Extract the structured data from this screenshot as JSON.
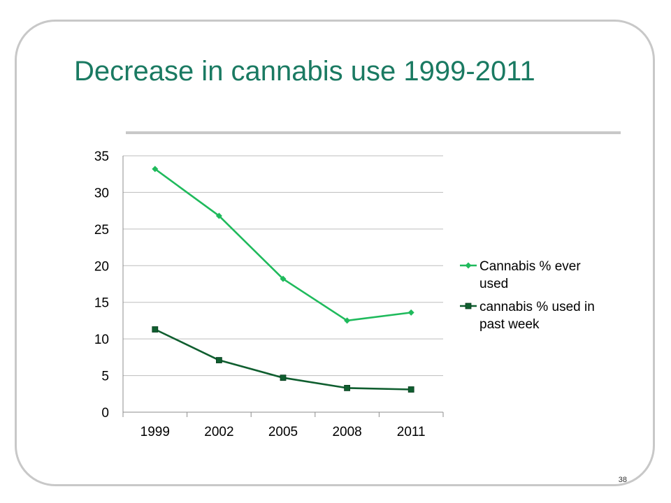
{
  "slide": {
    "title": "Decrease in cannabis use 1999-2011",
    "page_number": "38"
  },
  "chart_data": {
    "type": "line",
    "title": "",
    "xlabel": "",
    "ylabel": "",
    "categories": [
      "1999",
      "2002",
      "2005",
      "2008",
      "2011"
    ],
    "ylim": [
      0,
      35
    ],
    "yticks": [
      0,
      5,
      10,
      15,
      20,
      25,
      30,
      35
    ],
    "grid": true,
    "legend_position": "right",
    "series": [
      {
        "name": "Cannabis % ever used",
        "legend_lines": [
          "Cannabis % ever",
          "used"
        ],
        "marker": "diamond",
        "color": "#1fba5c",
        "values": [
          33.2,
          26.8,
          18.2,
          12.5,
          13.6
        ]
      },
      {
        "name": "cannabis % used in past week",
        "legend_lines": [
          "cannabis % used in",
          "past week"
        ],
        "marker": "square",
        "color": "#0f5e2f",
        "values": [
          11.3,
          7.1,
          4.7,
          3.3,
          3.1
        ]
      }
    ]
  }
}
